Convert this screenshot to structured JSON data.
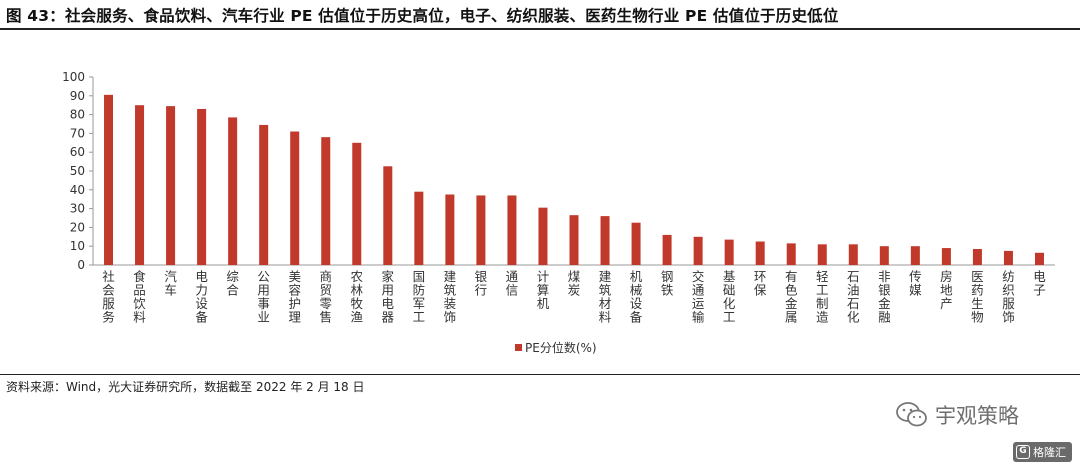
{
  "title": "图 43：社会服务、食品饮料、汽车行业 PE 估值位于历史高位，电子、纺织服装、医药生物行业 PE 估值位于历史低位",
  "source": "资料来源：Wind，光大证券研究所，数据截至 2022 年 2 月 18 日",
  "watermark": {
    "text": "宇观策略",
    "icon": "wechat-icon"
  },
  "badge": {
    "text": "格隆汇",
    "icon": "g-icon"
  },
  "colors": {
    "bar": "#C0392B",
    "axis": "#999999",
    "text": "#333333"
  },
  "chart_data": {
    "type": "bar",
    "categories": [
      "社会服务",
      "食品饮料",
      "汽车",
      "电力设备",
      "综合",
      "公用事业",
      "美容护理",
      "商贸零售",
      "农林牧渔",
      "家用电器",
      "国防军工",
      "建筑装饰",
      "银行",
      "通信",
      "计算机",
      "煤炭",
      "建筑材料",
      "机械设备",
      "钢铁",
      "交通运输",
      "基础化工",
      "环保",
      "有色金属",
      "轻工制造",
      "石油石化",
      "非银金融",
      "传媒",
      "房地产",
      "医药生物",
      "纺织服饰",
      "电子"
    ],
    "series": [
      {
        "name": "PE分位数(%)",
        "values": [
          90.5,
          85,
          84.5,
          83,
          78.5,
          74.5,
          71,
          68,
          65,
          52.5,
          39,
          37.5,
          37,
          37,
          30.5,
          26.5,
          26,
          22.5,
          16,
          15,
          13.5,
          12.5,
          11.5,
          11,
          11,
          10,
          10,
          9,
          8.5,
          7.5,
          6.5
        ]
      }
    ],
    "ylim": [
      0,
      100
    ],
    "yticks": [
      "0",
      "10",
      "20",
      "30",
      "40",
      "50",
      "60",
      "70",
      "80",
      "90",
      "100"
    ],
    "grid": false,
    "legend": "bottom"
  }
}
